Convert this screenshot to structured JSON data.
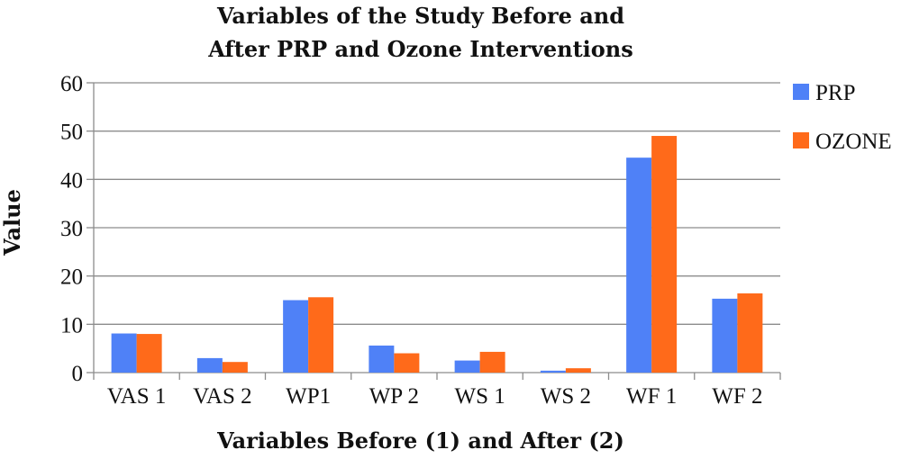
{
  "chart_data": {
    "type": "bar",
    "title_lines": [
      "Variables of  the Study Before and",
      "After  PRP and Ozone Interventions"
    ],
    "xlabel": "Variables Before (1) and After (2)",
    "ylabel": "Value",
    "categories": [
      "VAS 1",
      "VAS 2",
      "WP1",
      "WP 2",
      "WS 1",
      "WS 2",
      "WF 1",
      "WF 2"
    ],
    "series": [
      {
        "name": "PRP",
        "color": "#4F81F7",
        "values": [
          8.1,
          3.0,
          15.0,
          5.6,
          2.5,
          0.4,
          44.5,
          15.3
        ]
      },
      {
        "name": "OZONE",
        "color": "#FF6A1A",
        "values": [
          8.0,
          2.2,
          15.6,
          4.0,
          4.3,
          0.9,
          49.0,
          16.4
        ]
      }
    ],
    "ylim": [
      0,
      60
    ],
    "yticks": [
      "0",
      "10",
      "20",
      "30",
      "40",
      "50",
      "60"
    ],
    "grid": true,
    "legend_position": "right"
  }
}
